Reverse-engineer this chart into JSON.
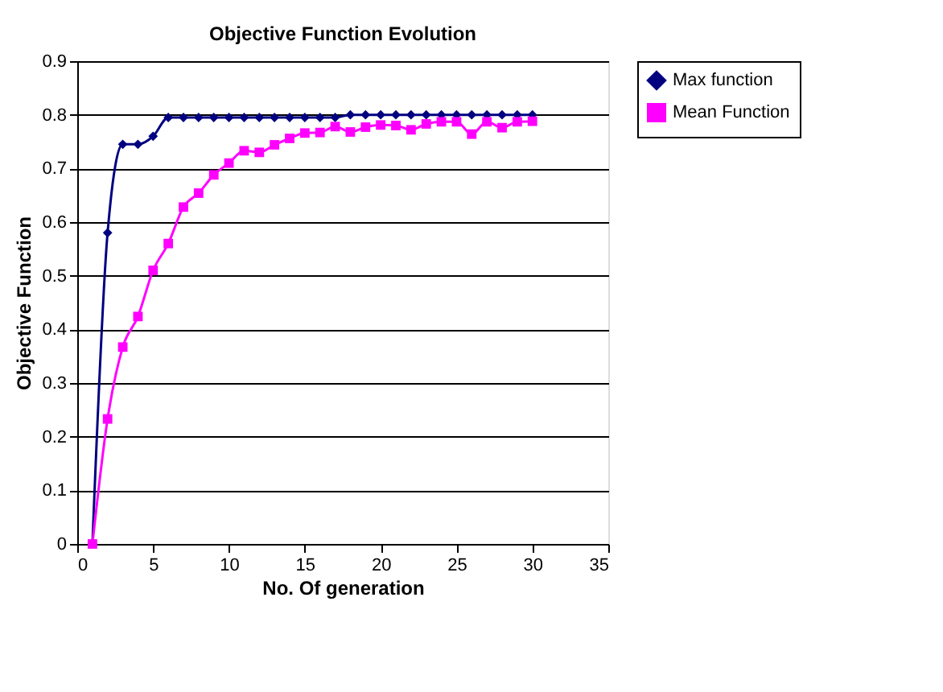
{
  "chart_data": {
    "type": "line",
    "title": "Objective Function Evolution",
    "xlabel": "No. Of generation",
    "ylabel": "Objective Function",
    "x": [
      1,
      2,
      3,
      4,
      5,
      6,
      7,
      8,
      9,
      10,
      11,
      12,
      13,
      14,
      15,
      16,
      17,
      18,
      19,
      20,
      21,
      22,
      23,
      24,
      25,
      26,
      27,
      28,
      29,
      30
    ],
    "series": [
      {
        "name": "Max function",
        "color": "#000080",
        "marker": "diamond",
        "values": [
          0,
          0.58,
          0.745,
          0.745,
          0.76,
          0.795,
          0.795,
          0.795,
          0.795,
          0.795,
          0.795,
          0.795,
          0.795,
          0.795,
          0.795,
          0.795,
          0.795,
          0.8,
          0.8,
          0.8,
          0.8,
          0.8,
          0.8,
          0.8,
          0.8,
          0.8,
          0.8,
          0.8,
          0.8,
          0.8
        ]
      },
      {
        "name": "Mean Function",
        "color": "#ff00ff",
        "marker": "square",
        "values": [
          0,
          0.233,
          0.367,
          0.424,
          0.51,
          0.56,
          0.628,
          0.654,
          0.688,
          0.71,
          0.733,
          0.73,
          0.744,
          0.756,
          0.766,
          0.767,
          0.778,
          0.768,
          0.777,
          0.781,
          0.78,
          0.772,
          0.783,
          0.787,
          0.787,
          0.764,
          0.787,
          0.776,
          0.787,
          0.788
        ]
      }
    ],
    "xlim": [
      0,
      35
    ],
    "xticks": [
      0,
      5,
      10,
      15,
      20,
      25,
      30,
      35
    ],
    "ylim": [
      0,
      0.9
    ],
    "yticks": [
      0,
      0.1,
      0.2,
      0.3,
      0.4,
      0.5,
      0.6,
      0.7,
      0.8,
      0.9
    ],
    "grid": "y",
    "legend": "right",
    "line_style": "solid"
  }
}
